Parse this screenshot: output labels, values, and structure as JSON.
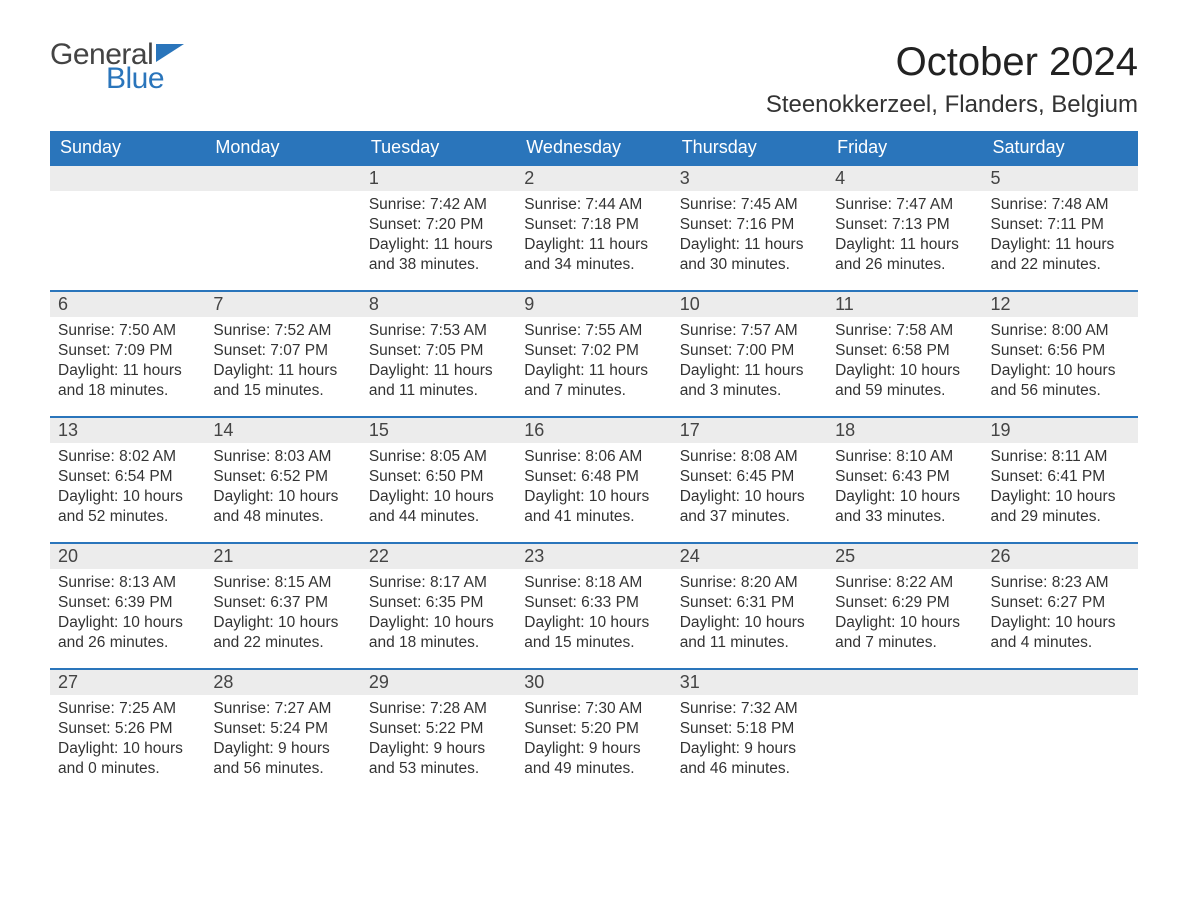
{
  "logo": {
    "line1": "General",
    "line2": "Blue",
    "flag_color": "#2a75bb"
  },
  "title": "October 2024",
  "location": "Steenokkerzeel, Flanders, Belgium",
  "colors": {
    "header_bg": "#2a75bb",
    "header_fg": "#ffffff",
    "daynum_bg": "#ececec",
    "daynum_border": "#2a75bb",
    "body_text": "#333333",
    "page_bg": "#ffffff"
  },
  "fonts": {
    "title_size": 40,
    "location_size": 24,
    "header_size": 18,
    "body_size": 15.5
  },
  "weekday_labels": [
    "Sunday",
    "Monday",
    "Tuesday",
    "Wednesday",
    "Thursday",
    "Friday",
    "Saturday"
  ],
  "field_labels": {
    "sunrise": "Sunrise",
    "sunset": "Sunset",
    "daylight": "Daylight"
  },
  "weeks": [
    [
      null,
      null,
      {
        "n": 1,
        "sunrise": "7:42 AM",
        "sunset": "7:20 PM",
        "daylight": "11 hours and 38 minutes."
      },
      {
        "n": 2,
        "sunrise": "7:44 AM",
        "sunset": "7:18 PM",
        "daylight": "11 hours and 34 minutes."
      },
      {
        "n": 3,
        "sunrise": "7:45 AM",
        "sunset": "7:16 PM",
        "daylight": "11 hours and 30 minutes."
      },
      {
        "n": 4,
        "sunrise": "7:47 AM",
        "sunset": "7:13 PM",
        "daylight": "11 hours and 26 minutes."
      },
      {
        "n": 5,
        "sunrise": "7:48 AM",
        "sunset": "7:11 PM",
        "daylight": "11 hours and 22 minutes."
      }
    ],
    [
      {
        "n": 6,
        "sunrise": "7:50 AM",
        "sunset": "7:09 PM",
        "daylight": "11 hours and 18 minutes."
      },
      {
        "n": 7,
        "sunrise": "7:52 AM",
        "sunset": "7:07 PM",
        "daylight": "11 hours and 15 minutes."
      },
      {
        "n": 8,
        "sunrise": "7:53 AM",
        "sunset": "7:05 PM",
        "daylight": "11 hours and 11 minutes."
      },
      {
        "n": 9,
        "sunrise": "7:55 AM",
        "sunset": "7:02 PM",
        "daylight": "11 hours and 7 minutes."
      },
      {
        "n": 10,
        "sunrise": "7:57 AM",
        "sunset": "7:00 PM",
        "daylight": "11 hours and 3 minutes."
      },
      {
        "n": 11,
        "sunrise": "7:58 AM",
        "sunset": "6:58 PM",
        "daylight": "10 hours and 59 minutes."
      },
      {
        "n": 12,
        "sunrise": "8:00 AM",
        "sunset": "6:56 PM",
        "daylight": "10 hours and 56 minutes."
      }
    ],
    [
      {
        "n": 13,
        "sunrise": "8:02 AM",
        "sunset": "6:54 PM",
        "daylight": "10 hours and 52 minutes."
      },
      {
        "n": 14,
        "sunrise": "8:03 AM",
        "sunset": "6:52 PM",
        "daylight": "10 hours and 48 minutes."
      },
      {
        "n": 15,
        "sunrise": "8:05 AM",
        "sunset": "6:50 PM",
        "daylight": "10 hours and 44 minutes."
      },
      {
        "n": 16,
        "sunrise": "8:06 AM",
        "sunset": "6:48 PM",
        "daylight": "10 hours and 41 minutes."
      },
      {
        "n": 17,
        "sunrise": "8:08 AM",
        "sunset": "6:45 PM",
        "daylight": "10 hours and 37 minutes."
      },
      {
        "n": 18,
        "sunrise": "8:10 AM",
        "sunset": "6:43 PM",
        "daylight": "10 hours and 33 minutes."
      },
      {
        "n": 19,
        "sunrise": "8:11 AM",
        "sunset": "6:41 PM",
        "daylight": "10 hours and 29 minutes."
      }
    ],
    [
      {
        "n": 20,
        "sunrise": "8:13 AM",
        "sunset": "6:39 PM",
        "daylight": "10 hours and 26 minutes."
      },
      {
        "n": 21,
        "sunrise": "8:15 AM",
        "sunset": "6:37 PM",
        "daylight": "10 hours and 22 minutes."
      },
      {
        "n": 22,
        "sunrise": "8:17 AM",
        "sunset": "6:35 PM",
        "daylight": "10 hours and 18 minutes."
      },
      {
        "n": 23,
        "sunrise": "8:18 AM",
        "sunset": "6:33 PM",
        "daylight": "10 hours and 15 minutes."
      },
      {
        "n": 24,
        "sunrise": "8:20 AM",
        "sunset": "6:31 PM",
        "daylight": "10 hours and 11 minutes."
      },
      {
        "n": 25,
        "sunrise": "8:22 AM",
        "sunset": "6:29 PM",
        "daylight": "10 hours and 7 minutes."
      },
      {
        "n": 26,
        "sunrise": "8:23 AM",
        "sunset": "6:27 PM",
        "daylight": "10 hours and 4 minutes."
      }
    ],
    [
      {
        "n": 27,
        "sunrise": "7:25 AM",
        "sunset": "5:26 PM",
        "daylight": "10 hours and 0 minutes."
      },
      {
        "n": 28,
        "sunrise": "7:27 AM",
        "sunset": "5:24 PM",
        "daylight": "9 hours and 56 minutes."
      },
      {
        "n": 29,
        "sunrise": "7:28 AM",
        "sunset": "5:22 PM",
        "daylight": "9 hours and 53 minutes."
      },
      {
        "n": 30,
        "sunrise": "7:30 AM",
        "sunset": "5:20 PM",
        "daylight": "9 hours and 49 minutes."
      },
      {
        "n": 31,
        "sunrise": "7:32 AM",
        "sunset": "5:18 PM",
        "daylight": "9 hours and 46 minutes."
      },
      null,
      null
    ]
  ]
}
